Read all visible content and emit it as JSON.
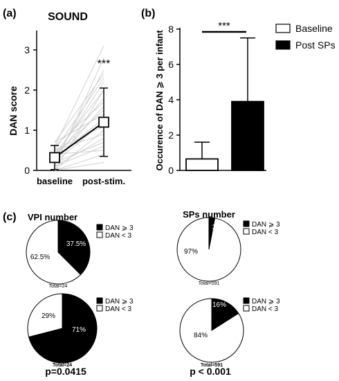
{
  "panel_labels": {
    "a": "(a)",
    "b": "(b)",
    "c": "(c)"
  },
  "chart_data": [
    {
      "type": "line",
      "panel": "(a)",
      "title": "SOUND",
      "xlabel": "",
      "ylabel": "DAN score",
      "categories": [
        "baseline",
        "post-stim."
      ],
      "ylim": [
        0,
        3
      ],
      "yticks": [
        "0",
        "1",
        "2",
        "3"
      ],
      "annotation": "***",
      "series": [
        {
          "values": [
            0.32,
            1.2
          ],
          "error": [
            0.3,
            0.85
          ],
          "marker": "square"
        }
      ],
      "individual_lines": [
        [
          0.1,
          2.8
        ],
        [
          0.6,
          3.1
        ],
        [
          0.2,
          2.5
        ],
        [
          0.5,
          2.3
        ],
        [
          0.0,
          2.0
        ],
        [
          0.3,
          1.8
        ],
        [
          0.7,
          2.4
        ],
        [
          0.4,
          1.5
        ],
        [
          0.2,
          1.2
        ],
        [
          0.0,
          1.0
        ],
        [
          0.6,
          1.7
        ],
        [
          0.1,
          0.8
        ],
        [
          0.4,
          2.0
        ],
        [
          0.3,
          1.3
        ],
        [
          0.0,
          0.4
        ],
        [
          0.5,
          0.9
        ],
        [
          0.2,
          1.6
        ],
        [
          0.7,
          1.4
        ],
        [
          0.1,
          0.6
        ],
        [
          0.3,
          2.2
        ],
        [
          0.0,
          0.2
        ],
        [
          0.5,
          1.1
        ],
        [
          0.2,
          0.7
        ],
        [
          0.4,
          0.5
        ]
      ]
    },
    {
      "type": "bar",
      "panel": "(b)",
      "ylabel": "Occurence of DAN ⩾ 3 per infant",
      "ylim": [
        0,
        8
      ],
      "yticks": [
        "0",
        "2",
        "4",
        "6",
        "8"
      ],
      "annotation": "***",
      "legend": [
        "Baseline",
        "Post SPs"
      ],
      "legend_position": "top-right",
      "series": [
        {
          "name": "Baseline",
          "value": 0.65,
          "error": 0.95,
          "color": "#ffffff"
        },
        {
          "name": "Post SPs",
          "value": 3.9,
          "error": 3.6,
          "color": "#000000"
        }
      ]
    },
    {
      "type": "pie",
      "panel": "(c)",
      "title": "VPI number",
      "legend": [
        "DAN ⩾ 3",
        "DAN < 3"
      ],
      "slices": [
        {
          "label": "DAN ⩾ 3",
          "value": 37.5,
          "text": "37.5%",
          "color": "#000000"
        },
        {
          "label": "DAN < 3",
          "value": 62.5,
          "text": "62.5%",
          "color": "#ffffff"
        }
      ],
      "total": "Total=24"
    },
    {
      "type": "pie",
      "panel": "(c)",
      "title": "SPs number",
      "legend": [
        "DAN ⩾ 3",
        "DAN < 3"
      ],
      "slices": [
        {
          "label": "DAN ⩾ 3",
          "value": 3,
          "text": "3%",
          "color": "#000000"
        },
        {
          "label": "DAN < 3",
          "value": 97,
          "text": "97%",
          "color": "#ffffff"
        }
      ],
      "total": "Total=591"
    },
    {
      "type": "pie",
      "panel": "(c)",
      "legend": [
        "DAN ⩾ 3",
        "DAN < 3"
      ],
      "slices": [
        {
          "label": "DAN ⩾ 3",
          "value": 71,
          "text": "71%",
          "color": "#000000"
        },
        {
          "label": "DAN < 3",
          "value": 29,
          "text": "29%",
          "color": "#ffffff"
        }
      ],
      "total": "Total=24",
      "pvalue": "p=0.0415"
    },
    {
      "type": "pie",
      "panel": "(c)",
      "legend": [
        "DAN ⩾ 3",
        "DAN < 3"
      ],
      "slices": [
        {
          "label": "DAN ⩾ 3",
          "value": 16,
          "text": "16%",
          "color": "#000000"
        },
        {
          "label": "DAN < 3",
          "value": 84,
          "text": "84%",
          "color": "#ffffff"
        }
      ],
      "total": "Total=591",
      "pvalue": "p < 0.001"
    }
  ]
}
